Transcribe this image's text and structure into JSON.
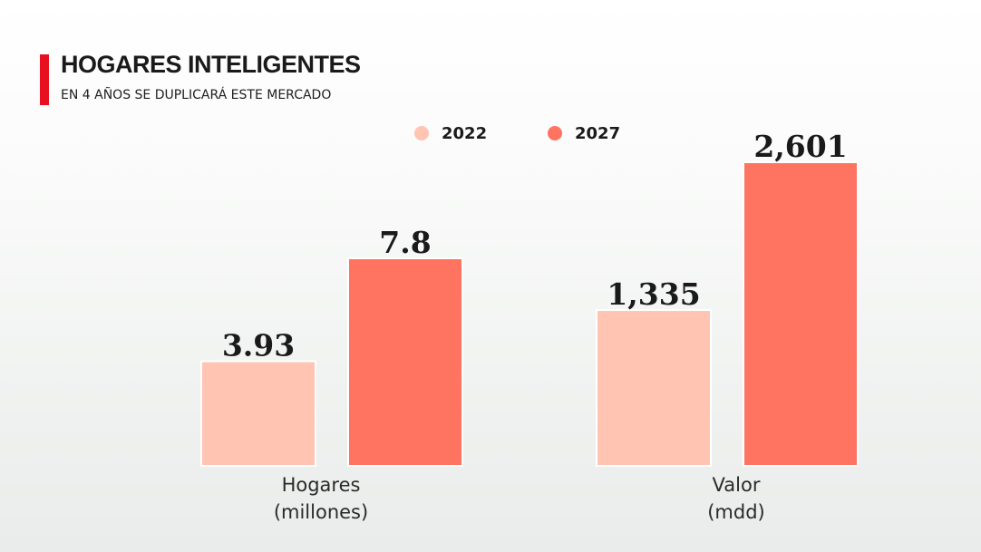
{
  "header": {
    "title": "HOGARES INTELIGENTES",
    "subtitle": "EN 4 AÑOS SE DUPLICARÁ ESTE MERCADO",
    "accent_color": "#e8101f"
  },
  "legend": [
    {
      "label": "2022",
      "color": "#ffc4b2"
    },
    {
      "label": "2027",
      "color": "#ff7361"
    }
  ],
  "chart_data": [
    {
      "type": "bar",
      "title": "Hogares (millones)",
      "xlabel": [
        "Hogares",
        "(millones)"
      ],
      "categories": [
        "2022",
        "2027"
      ],
      "series": [
        {
          "name": "Hogares",
          "values": [
            3.93,
            7.8
          ]
        }
      ],
      "value_labels": [
        "3.93",
        "7.8"
      ]
    },
    {
      "type": "bar",
      "title": "Valor (mdd)",
      "xlabel": [
        "Valor",
        "(mdd)"
      ],
      "categories": [
        "2022",
        "2027"
      ],
      "series": [
        {
          "name": "Valor",
          "values": [
            1335,
            2601
          ]
        }
      ],
      "value_labels": [
        "1,335",
        "2,601"
      ]
    }
  ]
}
